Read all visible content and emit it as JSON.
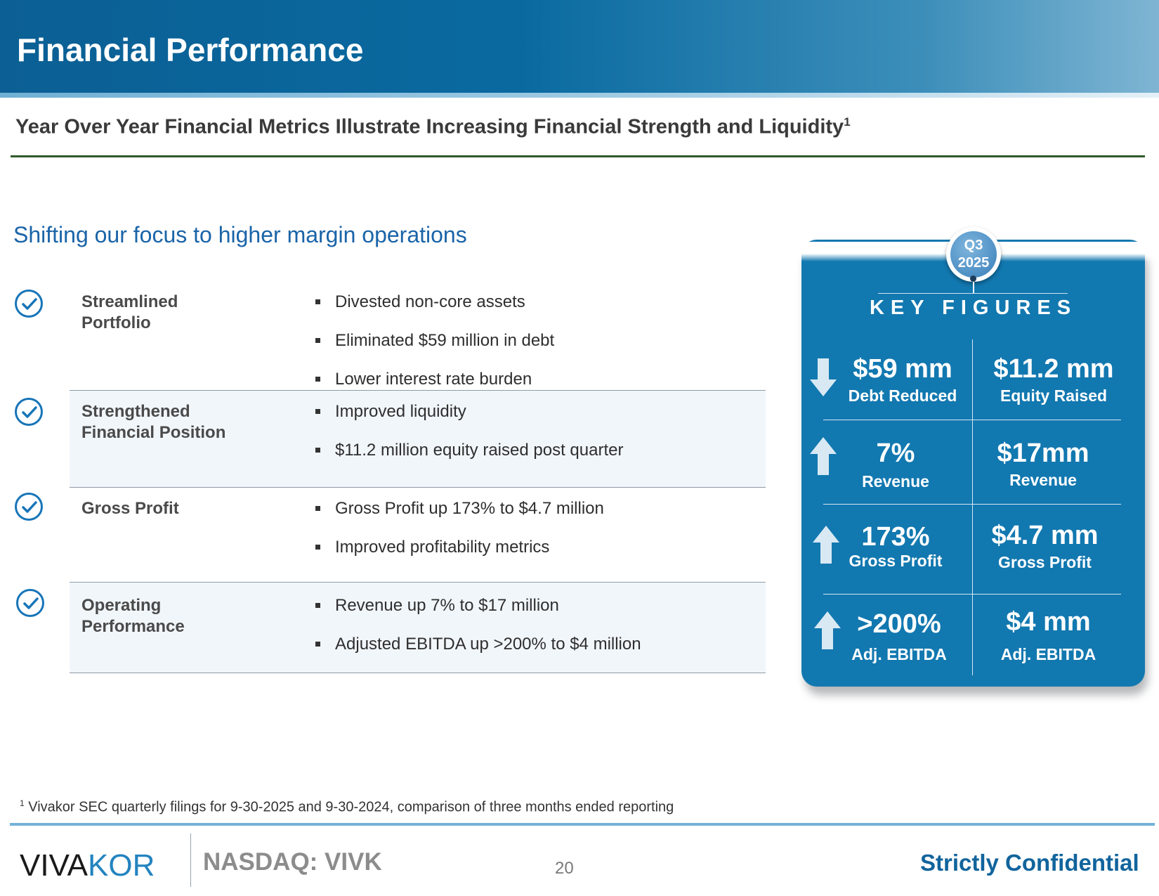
{
  "header": {
    "title": "Financial Performance"
  },
  "subtitle": {
    "text": "Year Over Year Financial Metrics Illustrate Increasing Financial Strength and Liquidity",
    "footnote_ref": "1"
  },
  "section": {
    "heading": "Shifting our focus to higher margin operations"
  },
  "rows": [
    {
      "label_line1": "Streamlined",
      "label_line2": "Portfolio",
      "bullets": [
        "Divested non-core assets",
        "Eliminated $59 million in debt",
        "Lower interest rate burden"
      ]
    },
    {
      "label_line1": "Strengthened",
      "label_line2": "Financial Position",
      "bullets": [
        "Improved liquidity",
        "$11.2 million equity raised post quarter"
      ]
    },
    {
      "label_line1": "Gross Profit",
      "label_line2": "",
      "bullets": [
        "Gross Profit up 173% to $4.7 million",
        "Improved profitability metrics"
      ]
    },
    {
      "label_line1": "Operating",
      "label_line2": "Performance",
      "bullets": [
        "Revenue up 7% to $17 million",
        "Adjusted EBITDA up >200% to $4 million"
      ]
    }
  ],
  "key_figures": {
    "badge_line1": "Q3",
    "badge_line2": "2025",
    "title": "KEY FIGURES",
    "cells": [
      {
        "value": "$59 mm",
        "label": "Debt Reduced",
        "arrow": "down"
      },
      {
        "value": "$11.2 mm",
        "label": "Equity Raised"
      },
      {
        "value": "7%",
        "label": "Revenue",
        "arrow": "up"
      },
      {
        "value": "$17mm",
        "label": "Revenue"
      },
      {
        "value": "173%",
        "label": "Gross Profit",
        "arrow": "up"
      },
      {
        "value": "$4.7 mm",
        "label": "Gross Profit"
      },
      {
        "value": ">200%",
        "label": "Adj. EBITDA",
        "arrow": "up"
      },
      {
        "value": "$4 mm",
        "label": "Adj. EBITDA"
      }
    ]
  },
  "footer": {
    "footnote_ref": "1",
    "footnote": "Vivakor SEC quarterly filings for 9-30-2025 and 9-30-2024, comparison of three months ended reporting",
    "logo_part1": "VIVA",
    "logo_part2": "KOR",
    "ticker": "NASDAQ: VIVK",
    "page_number": "20",
    "confidential": "Strictly Confidential"
  },
  "colors": {
    "header_blue": "#0b5f94",
    "panel_blue": "#1278b0",
    "heading_blue": "#1a64a8",
    "check_blue": "#1775b8",
    "rule_green": "#2f5a2a"
  }
}
